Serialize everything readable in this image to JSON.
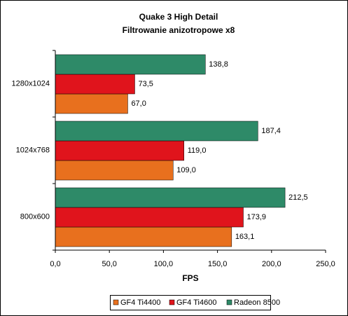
{
  "chart_data": {
    "type": "hbar",
    "title": "Quake 3 High Detail",
    "subtitle": "Filtrowanie anizotropowe x8",
    "xlabel": "FPS",
    "categories": [
      "1280x1024",
      "1024x768",
      "800x600"
    ],
    "series": [
      {
        "name": "GF4 Ti4400",
        "color": "#e8701e",
        "values": [
          67.0,
          109.0,
          163.1
        ],
        "value_labels": [
          "67,0",
          "109,0",
          "163,1"
        ]
      },
      {
        "name": "GF4 Ti4600",
        "color": "#e0141c",
        "values": [
          73.5,
          119.0,
          173.9
        ],
        "value_labels": [
          "73,5",
          "119,0",
          "173,9"
        ]
      },
      {
        "name": "Radeon 8500",
        "color": "#2e8a68",
        "values": [
          138.8,
          187.4,
          212.5
        ],
        "value_labels": [
          "138,8",
          "187,4",
          "212,5"
        ]
      }
    ],
    "xlim": [
      0,
      250
    ],
    "xticks": [
      {
        "value": 0,
        "label": "0,0"
      },
      {
        "value": 50,
        "label": "50,0"
      },
      {
        "value": 100,
        "label": "100,0"
      },
      {
        "value": 150,
        "label": "150,0"
      },
      {
        "value": 200,
        "label": "200,0"
      },
      {
        "value": 250,
        "label": "250,0"
      }
    ],
    "legend": "bottom"
  }
}
